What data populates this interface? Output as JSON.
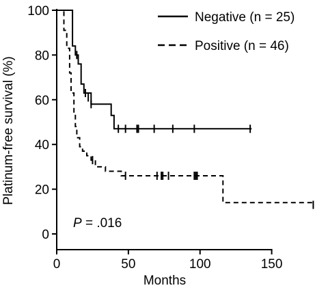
{
  "chart_data": {
    "type": "line",
    "xlabel": "Months",
    "ylabel": "Platinum-free survival (%)",
    "xlim": [
      0,
      185
    ],
    "ylim": [
      0,
      100
    ],
    "xticks": [
      0,
      50,
      100,
      150
    ],
    "yticks": [
      0,
      20,
      40,
      60,
      80,
      100
    ],
    "grid": false,
    "legend": "top-right",
    "annotation": {
      "italic": "P",
      "rest": " = .016"
    },
    "series": [
      {
        "name": "Negative (n = 25)",
        "style": "solid",
        "color": "#000000",
        "steps": [
          [
            0,
            100
          ],
          [
            11,
            100
          ],
          [
            11,
            84
          ],
          [
            13,
            84
          ],
          [
            13,
            80
          ],
          [
            15,
            80
          ],
          [
            15,
            76
          ],
          [
            17,
            76
          ],
          [
            17,
            67
          ],
          [
            19,
            67
          ],
          [
            19,
            63
          ],
          [
            24,
            63
          ],
          [
            24,
            58
          ],
          [
            38,
            58
          ],
          [
            38,
            53
          ],
          [
            40,
            53
          ],
          [
            40,
            47
          ],
          [
            136,
            47
          ]
        ],
        "censors": [
          [
            14,
            80
          ],
          [
            20,
            63
          ],
          [
            22,
            61
          ],
          [
            24,
            58
          ],
          [
            43,
            47
          ],
          [
            48,
            47
          ],
          [
            56,
            47
          ],
          [
            57,
            47
          ],
          [
            68,
            47
          ],
          [
            81,
            47
          ],
          [
            96,
            47
          ],
          [
            135,
            47
          ]
        ]
      },
      {
        "name": "Positive (n = 46)",
        "style": "dashed",
        "color": "#000000",
        "steps": [
          [
            0,
            100
          ],
          [
            5,
            100
          ],
          [
            5,
            91
          ],
          [
            7,
            91
          ],
          [
            7,
            83
          ],
          [
            9,
            83
          ],
          [
            9,
            72
          ],
          [
            10,
            72
          ],
          [
            10,
            63
          ],
          [
            12,
            63
          ],
          [
            12,
            54
          ],
          [
            13,
            54
          ],
          [
            13,
            48
          ],
          [
            14,
            48
          ],
          [
            14,
            43
          ],
          [
            16,
            43
          ],
          [
            16,
            39
          ],
          [
            18,
            39
          ],
          [
            18,
            37
          ],
          [
            21,
            37
          ],
          [
            21,
            35
          ],
          [
            24,
            35
          ],
          [
            24,
            33
          ],
          [
            27,
            33
          ],
          [
            27,
            30
          ],
          [
            34,
            30
          ],
          [
            34,
            28
          ],
          [
            45,
            28
          ],
          [
            45,
            26
          ],
          [
            116,
            26
          ],
          [
            116,
            14
          ],
          [
            180,
            14
          ]
        ],
        "censors": [
          [
            25,
            33
          ],
          [
            48,
            26
          ],
          [
            70,
            26
          ],
          [
            73,
            26
          ],
          [
            74,
            26
          ],
          [
            78,
            26
          ],
          [
            96,
            26
          ],
          [
            97,
            26
          ],
          [
            98,
            26
          ],
          [
            179,
            13
          ]
        ]
      }
    ]
  }
}
